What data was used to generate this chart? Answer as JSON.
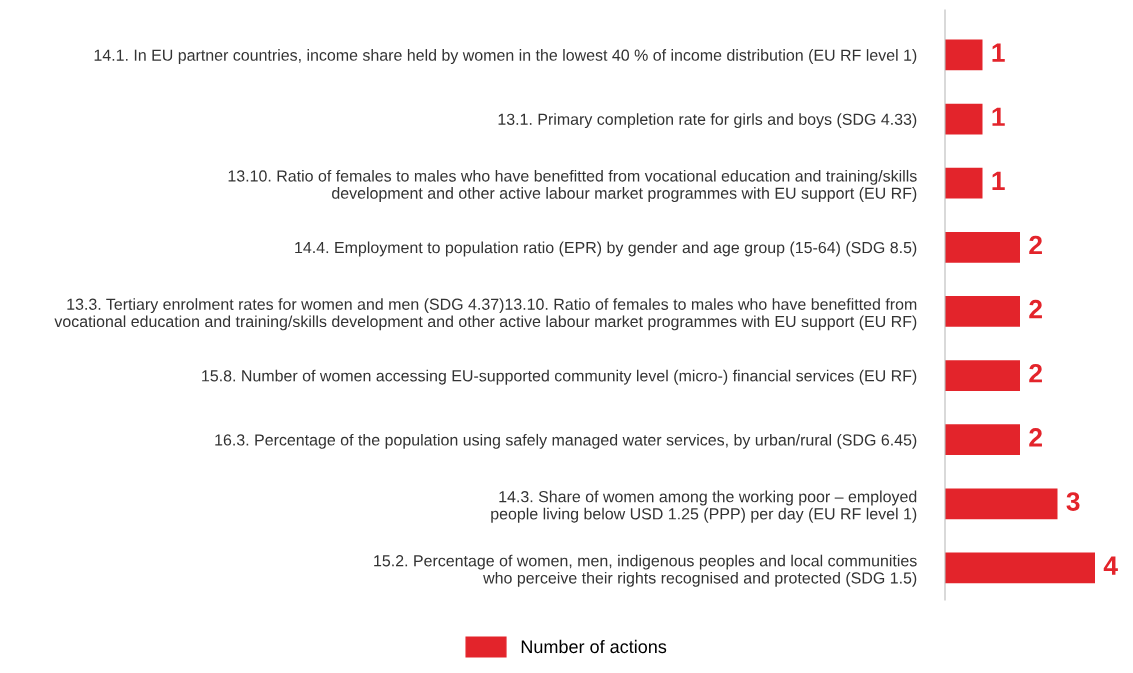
{
  "chart_data": {
    "type": "bar",
    "orientation": "horizontal",
    "categories": [
      "14.1. In EU partner countries, income share held by women in the lowest 40 % of income distribution (EU RF level 1)",
      "13.1. Primary completion rate for girls and boys (SDG 4.33)",
      "13.10. Ratio of females to males who have benefitted from vocational education and training/skills\ndevelopment and other active labour market programmes with EU support (EU RF)",
      "14.4. Employment to population ratio (EPR) by gender and age group (15-64) (SDG 8.5)",
      "13.3. Tertiary enrolment rates for women and men (SDG 4.37)13.10. Ratio of females to males who have benefitted from\nvocational education and training/skills development and other active labour market programmes with EU support (EU RF)",
      "15.8. Number of women accessing EU-supported community level (micro-) financial services (EU RF)",
      "16.3. Percentage of the population using safely managed water services, by urban/rural (SDG 6.45)",
      "14.3. Share of women among the working poor – employed\npeople living below USD 1.25 (PPP) per day (EU RF level 1)",
      "15.2. Percentage of women, men, indigenous peoples and local communities\nwho perceive their rights recognised and protected (SDG 1.5)"
    ],
    "series": [
      {
        "name": "Number of actions",
        "color": "#e3242b",
        "values": [
          1,
          1,
          1,
          2,
          2,
          2,
          2,
          3,
          4
        ]
      }
    ],
    "data_labels": true,
    "legend": "bottom",
    "grid": false
  }
}
